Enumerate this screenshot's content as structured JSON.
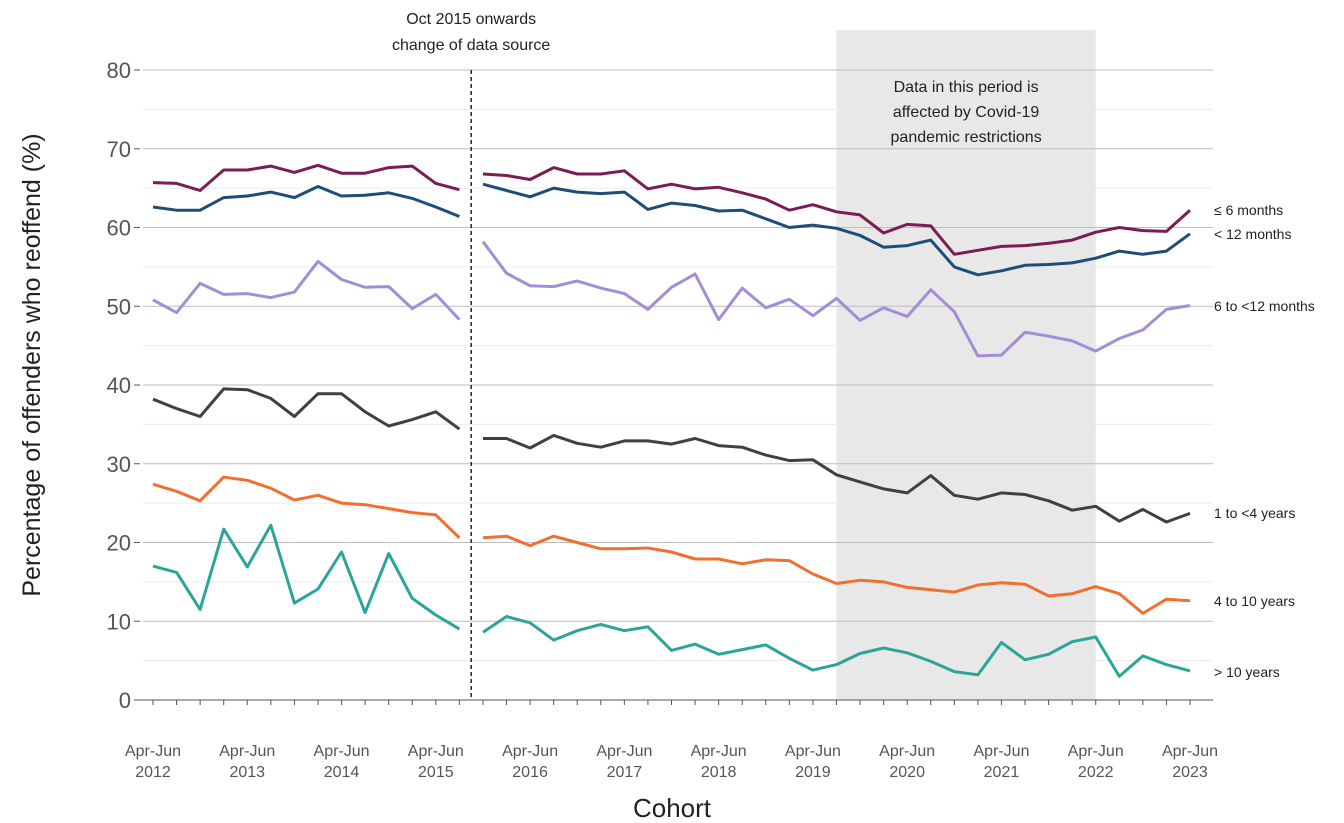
{
  "chart_data": {
    "type": "line",
    "xlabel": "Cohort",
    "ylabel": "Percentage of offenders who reoffend (%)",
    "ylim": [
      0,
      80
    ],
    "yticks": [
      0,
      10,
      20,
      30,
      40,
      50,
      60,
      70,
      80
    ],
    "grid": "horizontal",
    "x": [
      "Apr-Jun 2012",
      "Jul-Sep 2012",
      "Oct-Dec 2012",
      "Jan-Mar 2013",
      "Apr-Jun 2013",
      "Jul-Sep 2013",
      "Oct-Dec 2013",
      "Jan-Mar 2014",
      "Apr-Jun 2014",
      "Jul-Sep 2014",
      "Oct-Dec 2014",
      "Jan-Mar 2015",
      "Apr-Jun 2015",
      "Jul-Sep 2015",
      "Oct-Dec 2015",
      "Jan-Mar 2016",
      "Apr-Jun 2016",
      "Jul-Sep 2016",
      "Oct-Dec 2016",
      "Jan-Mar 2017",
      "Apr-Jun 2017",
      "Jul-Sep 2017",
      "Oct-Dec 2017",
      "Jan-Mar 2018",
      "Apr-Jun 2018",
      "Jul-Sep 2018",
      "Oct-Dec 2018",
      "Jan-Mar 2019",
      "Apr-Jun 2019",
      "Jul-Sep 2019",
      "Oct-Dec 2019",
      "Jan-Mar 2020",
      "Apr-Jun 2020",
      "Jul-Sep 2020",
      "Oct-Dec 2020",
      "Jan-Mar 2021",
      "Apr-Jun 2021",
      "Jul-Sep 2021",
      "Oct-Dec 2021",
      "Jan-Mar 2022",
      "Apr-Jun 2022",
      "Jul-Sep 2022",
      "Oct-Dec 2022",
      "Jan-Mar 2023",
      "Apr-Jun 2023"
    ],
    "tick_labels": [
      {
        "index": 0,
        "line1": "Apr-Jun",
        "line2": "2012"
      },
      {
        "index": 4,
        "line1": "Apr-Jun",
        "line2": "2013"
      },
      {
        "index": 8,
        "line1": "Apr-Jun",
        "line2": "2014"
      },
      {
        "index": 12,
        "line1": "Apr-Jun",
        "line2": "2015"
      },
      {
        "index": 16,
        "line1": "Apr-Jun",
        "line2": "2016"
      },
      {
        "index": 20,
        "line1": "Apr-Jun",
        "line2": "2017"
      },
      {
        "index": 24,
        "line1": "Apr-Jun",
        "line2": "2018"
      },
      {
        "index": 28,
        "line1": "Apr-Jun",
        "line2": "2019"
      },
      {
        "index": 32,
        "line1": "Apr-Jun",
        "line2": "2020"
      },
      {
        "index": 36,
        "line1": "Apr-Jun",
        "line2": "2021"
      },
      {
        "index": 40,
        "line1": "Apr-Jun",
        "line2": "2022"
      },
      {
        "index": 44,
        "line1": "Apr-Jun",
        "line2": "2023"
      }
    ],
    "break_line": {
      "after_index": 13,
      "line1": "Oct 2015 onwards",
      "line2": "change of data source"
    },
    "shaded_region": {
      "from": 29,
      "to": 40,
      "lines": [
        "Data in this period is",
        "affected by Covid-19",
        "pandemic restrictions"
      ],
      "color": "#e8e8e8"
    },
    "series": [
      {
        "name": "≤ 6 months",
        "color": "#7b1c53",
        "values": [
          65.7,
          65.6,
          64.7,
          67.3,
          67.3,
          67.8,
          67.0,
          67.9,
          66.9,
          66.9,
          67.6,
          67.8,
          65.6,
          64.8,
          66.8,
          66.6,
          66.1,
          67.6,
          66.8,
          66.8,
          67.2,
          64.9,
          65.5,
          64.9,
          65.1,
          64.4,
          63.6,
          62.2,
          62.9,
          62.0,
          61.6,
          59.3,
          60.4,
          60.2,
          56.6,
          57.1,
          57.6,
          57.7,
          58.0,
          58.4,
          59.4,
          60.0,
          59.6,
          59.5,
          62.2
        ]
      },
      {
        "name": "< 12 months",
        "color": "#1e4d78",
        "values": [
          62.6,
          62.2,
          62.2,
          63.8,
          64.0,
          64.5,
          63.8,
          65.2,
          64.0,
          64.1,
          64.4,
          63.7,
          62.6,
          61.4,
          65.5,
          64.7,
          63.9,
          65.0,
          64.5,
          64.3,
          64.5,
          62.3,
          63.1,
          62.8,
          62.1,
          62.2,
          61.1,
          60.0,
          60.3,
          59.9,
          59.0,
          57.5,
          57.7,
          58.4,
          55.0,
          54.0,
          54.5,
          55.2,
          55.3,
          55.5,
          56.1,
          57.0,
          56.6,
          57.0,
          59.2
        ]
      },
      {
        "name": "6 to <12 months",
        "color": "#a58cd8",
        "values": [
          50.8,
          49.2,
          52.9,
          51.5,
          51.6,
          51.1,
          51.8,
          55.7,
          53.4,
          52.4,
          52.5,
          49.7,
          51.5,
          48.3,
          58.2,
          54.2,
          52.6,
          52.5,
          53.2,
          52.3,
          51.6,
          49.6,
          52.4,
          54.1,
          48.3,
          52.3,
          49.8,
          50.9,
          48.8,
          51.0,
          48.2,
          49.8,
          48.7,
          52.1,
          49.3,
          43.7,
          43.8,
          46.7,
          46.2,
          45.6,
          44.3,
          45.9,
          47.0,
          49.6,
          50.1
        ]
      },
      {
        "name": "1 to <4 years",
        "color": "#404040",
        "values": [
          38.2,
          37.0,
          36.0,
          39.5,
          39.4,
          38.3,
          36.0,
          38.9,
          38.9,
          36.6,
          34.8,
          35.6,
          36.6,
          34.4,
          33.2,
          33.2,
          32.0,
          33.6,
          32.6,
          32.1,
          32.9,
          32.9,
          32.5,
          33.2,
          32.3,
          32.1,
          31.1,
          30.4,
          30.5,
          28.6,
          27.7,
          26.8,
          26.3,
          28.5,
          26.0,
          25.5,
          26.3,
          26.1,
          25.3,
          24.1,
          24.6,
          22.7,
          24.2,
          22.6,
          23.7
        ]
      },
      {
        "name": "4 to 10 years",
        "color": "#f07030",
        "values": [
          27.4,
          26.5,
          25.3,
          28.3,
          27.9,
          26.9,
          25.4,
          26.0,
          25.0,
          24.8,
          24.3,
          23.8,
          23.5,
          20.6,
          20.6,
          20.8,
          19.6,
          20.8,
          20.0,
          19.2,
          19.2,
          19.3,
          18.8,
          17.9,
          17.9,
          17.3,
          17.8,
          17.7,
          16.0,
          14.8,
          15.2,
          15.0,
          14.3,
          14.0,
          13.7,
          14.6,
          14.9,
          14.7,
          13.2,
          13.5,
          14.4,
          13.5,
          11.0,
          12.8,
          12.6
        ]
      },
      {
        "name": "> 10 years",
        "color": "#2ba59a",
        "values": [
          17.0,
          16.2,
          11.5,
          21.7,
          16.9,
          22.2,
          12.3,
          14.1,
          18.8,
          11.1,
          18.6,
          12.9,
          10.8,
          9.0,
          8.6,
          10.6,
          9.8,
          7.6,
          8.8,
          9.6,
          8.8,
          9.3,
          6.3,
          7.1,
          5.8,
          6.4,
          7.0,
          5.3,
          3.8,
          4.5,
          5.9,
          6.6,
          6.0,
          4.9,
          3.6,
          3.2,
          7.3,
          5.1,
          5.8,
          7.4,
          8.0,
          3.0,
          5.6,
          4.5,
          3.7
        ]
      }
    ]
  }
}
